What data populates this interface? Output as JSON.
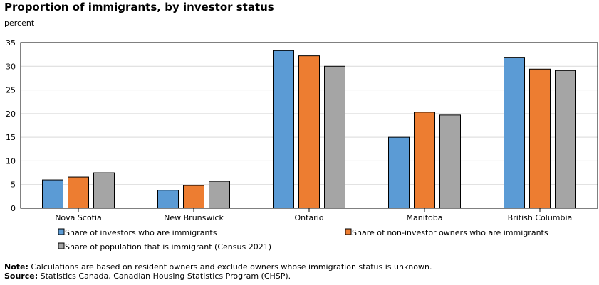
{
  "title": "Proportion of immigrants, by investor status",
  "unit_label": "percent",
  "chart_data": {
    "type": "bar",
    "title": "Proportion of immigrants, by investor status",
    "ylabel": "percent",
    "xlabel": "",
    "ylim": [
      0,
      35
    ],
    "yticks": [
      0,
      5,
      10,
      15,
      20,
      25,
      30,
      35
    ],
    "grid": true,
    "legend_position": "bottom",
    "categories": [
      "Nova Scotia",
      "New Brunswick",
      "Ontario",
      "Manitoba",
      "British Columbia"
    ],
    "series": [
      {
        "name": "Share of investors who are immigrants",
        "color": "#5b9bd5",
        "values": [
          6.0,
          3.8,
          33.3,
          15.0,
          31.9
        ]
      },
      {
        "name": "Share of non-investor owners who are immigrants",
        "color": "#ed7d31",
        "values": [
          6.6,
          4.8,
          32.2,
          20.3,
          29.4
        ]
      },
      {
        "name": "Share of population that is immigrant (Census 2021)",
        "color": "#a5a5a5",
        "values": [
          7.5,
          5.7,
          30.0,
          19.7,
          29.1
        ]
      }
    ]
  },
  "note": {
    "label": "Note:",
    "text": " Calculations are based on resident owners and exclude owners whose immigration status is unknown."
  },
  "source": {
    "label": "Source:",
    "text": " Statistics Canada, Canadian Housing Statistics Program (CHSP)."
  }
}
